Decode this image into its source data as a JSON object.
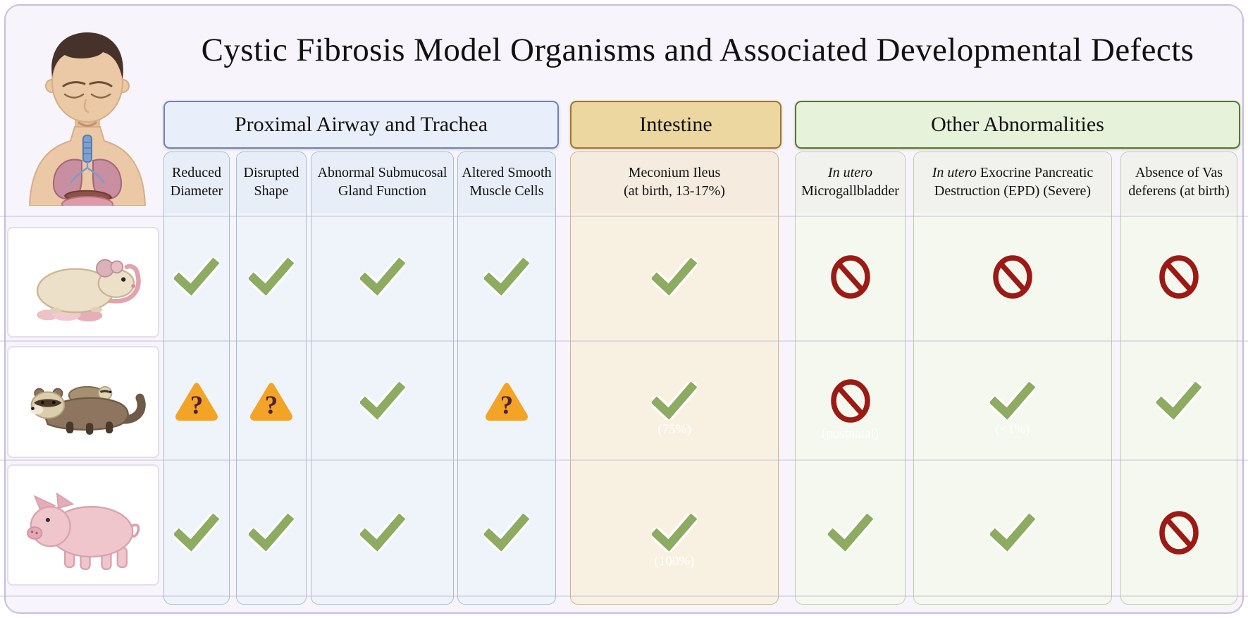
{
  "title": "Cystic Fibrosis Model Organisms and Associated Developmental Defects",
  "groups": {
    "airway": {
      "label": "Proximal Airway and Trachea"
    },
    "intestine": {
      "label": "Intestine"
    },
    "other": {
      "label": "Other Abnormalities"
    }
  },
  "columns": [
    {
      "key": "reduced-diameter",
      "group": "airway",
      "label": "Reduced Diameter"
    },
    {
      "key": "disrupted-shape",
      "group": "airway",
      "label": "Disrupted Shape"
    },
    {
      "key": "abnormal-submucosal-gland-function",
      "group": "airway",
      "label": "Abnormal Submucosal Gland Function"
    },
    {
      "key": "altered-smooth-muscle-cells",
      "group": "airway",
      "label": "Altered Smooth Muscle Cells"
    },
    {
      "key": "meconium-ileus",
      "group": "intestine",
      "label": "Meconium Ileus",
      "sublabel": "(at birth, 13-17%)"
    },
    {
      "key": "microgallbladder",
      "group": "other",
      "italic_prefix": "In utero",
      "label": "Microgallbladder"
    },
    {
      "key": "exocrine-pancreatic-destruction",
      "group": "other",
      "italic_prefix": "In utero",
      "label": "Exocrine Pancreatic Destruction (EPD) (Severe)"
    },
    {
      "key": "vas-deferens-absence",
      "group": "other",
      "label": "Absence of Vas deferens (at birth)"
    }
  ],
  "organisms": [
    {
      "name": "mouse",
      "cells": [
        {
          "mark": "check"
        },
        {
          "mark": "check"
        },
        {
          "mark": "check"
        },
        {
          "mark": "check"
        },
        {
          "mark": "check"
        },
        {
          "mark": "prohibited"
        },
        {
          "mark": "prohibited"
        },
        {
          "mark": "prohibited"
        }
      ]
    },
    {
      "name": "ferret",
      "cells": [
        {
          "mark": "uncertain"
        },
        {
          "mark": "uncertain"
        },
        {
          "mark": "check"
        },
        {
          "mark": "uncertain"
        },
        {
          "mark": "check",
          "note": "(75%)"
        },
        {
          "mark": "prohibited",
          "note": "(postnatal)"
        },
        {
          "mark": "check",
          "note": "(<1%)"
        },
        {
          "mark": "check"
        }
      ]
    },
    {
      "name": "pig",
      "cells": [
        {
          "mark": "check"
        },
        {
          "mark": "check"
        },
        {
          "mark": "check"
        },
        {
          "mark": "check"
        },
        {
          "mark": "check",
          "note": "(100%)"
        },
        {
          "mark": "check"
        },
        {
          "mark": "check"
        },
        {
          "mark": "prohibited"
        }
      ]
    }
  ],
  "icons": {
    "check": "check-icon",
    "uncertain": "question-warning-icon",
    "prohibited": "prohibited-icon"
  },
  "colors": {
    "check": "#8dab61",
    "warning": "#f3a426",
    "warning_glyph": "#4f2240",
    "prohibited": "#9c1a15",
    "note_text": "#ffffff",
    "airway_header_bg": "#e9effa",
    "airway_border": "#6e84ba",
    "intestine_header_bg": "#ebd79f",
    "intestine_border": "#a2752c",
    "other_header_bg": "#e6f2da",
    "other_border": "#567730",
    "panel_bg": "#f7f4fb"
  }
}
